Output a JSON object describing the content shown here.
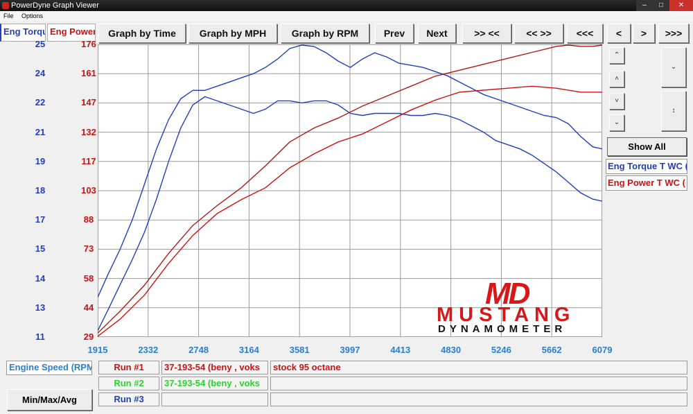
{
  "window": {
    "title": "PowerDyne Graph Viewer"
  },
  "menu": {
    "file": "File",
    "options": "Options"
  },
  "tabs": {
    "torque": "Eng Torque",
    "power": "Eng Power"
  },
  "toolbar": {
    "graph_time": "Graph by Time",
    "graph_mph": "Graph by MPH",
    "graph_rpm": "Graph by RPM",
    "prev": "Prev",
    "next": "Next",
    "zoom_in": ">> <<",
    "zoom_out": "<< >>",
    "first": "<<<",
    "back": "<",
    "forward": ">",
    "last": ">>>"
  },
  "side": {
    "show_all": "Show All",
    "legend_torque": "Eng Torque T WC (",
    "legend_power": "Eng Power T WC ("
  },
  "bottom": {
    "channel": "Engine Speed (RPM",
    "runs": [
      {
        "label": "Run #1",
        "id": "37-193-54 (beny , voks",
        "note": "stock 95 octane"
      },
      {
        "label": "Run #2",
        "id": "37-193-54 (beny , voks",
        "note": ""
      },
      {
        "label": "Run #3",
        "id": "",
        "note": ""
      }
    ],
    "minmax": "Min/Max/Avg"
  },
  "logo": {
    "md": "MD",
    "name": "MUSTANG",
    "sub": "DYNAMOMETER"
  },
  "colors": {
    "torque": "#1f3fbf",
    "power": "#d01010",
    "xaxis": "#2a7fd0",
    "run1": "#d01010",
    "run2": "#2ed12e",
    "run3": "#1f3fbf"
  },
  "chart_data": {
    "type": "line",
    "x_ticks": [
      "1915",
      "2332",
      "2748",
      "3164",
      "3581",
      "3997",
      "4413",
      "4830",
      "5246",
      "5662",
      "6079"
    ],
    "xlim": [
      1915,
      6079
    ],
    "torque_ticks": [
      "25",
      "24",
      "22",
      "21",
      "19",
      "18",
      "17",
      "15",
      "14",
      "13",
      "11"
    ],
    "torque_ylim": [
      11,
      25
    ],
    "power_ticks": [
      "176",
      "161",
      "147",
      "132",
      "117",
      "103",
      "88",
      "73",
      "58",
      "44",
      "29"
    ],
    "power_ylim": [
      29,
      176
    ],
    "grid": true,
    "series": [
      {
        "axis": "torque",
        "color": "#1f3fbf",
        "x": [
          1915,
          2000,
          2100,
          2200,
          2300,
          2400,
          2500,
          2600,
          2700,
          2800,
          2900,
          3000,
          3100,
          3200,
          3300,
          3400,
          3500,
          3600,
          3700,
          3800,
          3900,
          4000,
          4100,
          4200,
          4300,
          4400,
          4500,
          4600,
          4700,
          4800,
          4900,
          5000,
          5100,
          5200,
          5300,
          5400,
          5500,
          5600,
          5700,
          5800,
          5900,
          6000,
          6079
        ],
        "y": [
          12.9,
          14.0,
          15.2,
          16.6,
          18.3,
          20.0,
          21.4,
          22.4,
          22.8,
          22.8,
          23.0,
          23.2,
          23.4,
          23.6,
          23.9,
          24.3,
          24.8,
          25.0,
          24.9,
          24.6,
          24.2,
          23.9,
          24.3,
          24.6,
          24.4,
          24.1,
          24.0,
          23.9,
          23.7,
          23.5,
          23.2,
          22.9,
          22.6,
          22.4,
          22.2,
          22.0,
          21.8,
          21.6,
          21.5,
          21.2,
          20.6,
          20.1,
          20.0
        ]
      },
      {
        "axis": "torque",
        "color": "#1f3fbf",
        "x": [
          1915,
          2000,
          2100,
          2200,
          2300,
          2400,
          2500,
          2600,
          2700,
          2800,
          2900,
          3000,
          3100,
          3200,
          3300,
          3400,
          3500,
          3600,
          3700,
          3800,
          3900,
          4000,
          4100,
          4200,
          4300,
          4400,
          4500,
          4600,
          4700,
          4800,
          4900,
          5000,
          5100,
          5200,
          5300,
          5400,
          5500,
          5600,
          5700,
          5800,
          5900,
          6000,
          6079
        ],
        "y": [
          11.3,
          12.3,
          13.5,
          14.7,
          16.0,
          17.6,
          19.4,
          21.0,
          22.1,
          22.5,
          22.3,
          22.1,
          21.9,
          21.7,
          21.9,
          22.3,
          22.3,
          22.2,
          22.3,
          22.3,
          22.1,
          21.7,
          21.6,
          21.7,
          21.7,
          21.7,
          21.6,
          21.6,
          21.7,
          21.6,
          21.4,
          21.1,
          20.8,
          20.4,
          20.2,
          20.0,
          19.7,
          19.3,
          18.9,
          18.4,
          17.9,
          17.6,
          17.5
        ]
      },
      {
        "axis": "power",
        "color": "#b01818",
        "x": [
          1915,
          2100,
          2300,
          2500,
          2700,
          2900,
          3100,
          3300,
          3500,
          3700,
          3900,
          4100,
          4300,
          4500,
          4700,
          4900,
          5100,
          5300,
          5500,
          5700,
          5800,
          5900,
          6000,
          6079
        ],
        "y": [
          31,
          42,
          55,
          71,
          85,
          95,
          104,
          115,
          127,
          134,
          139,
          145,
          150,
          155,
          160,
          163,
          166,
          169,
          172,
          175,
          176,
          175,
          175,
          177
        ]
      },
      {
        "axis": "power",
        "color": "#d01010",
        "x": [
          1915,
          2100,
          2300,
          2500,
          2700,
          2900,
          3100,
          3300,
          3500,
          3700,
          3900,
          4100,
          4300,
          4500,
          4700,
          4900,
          5100,
          5300,
          5500,
          5700,
          5900,
          6079
        ],
        "y": [
          29,
          38,
          50,
          66,
          80,
          91,
          98,
          104,
          114,
          121,
          127,
          131,
          137,
          143,
          148,
          152,
          153,
          154,
          155,
          154,
          152,
          152
        ]
      }
    ]
  }
}
